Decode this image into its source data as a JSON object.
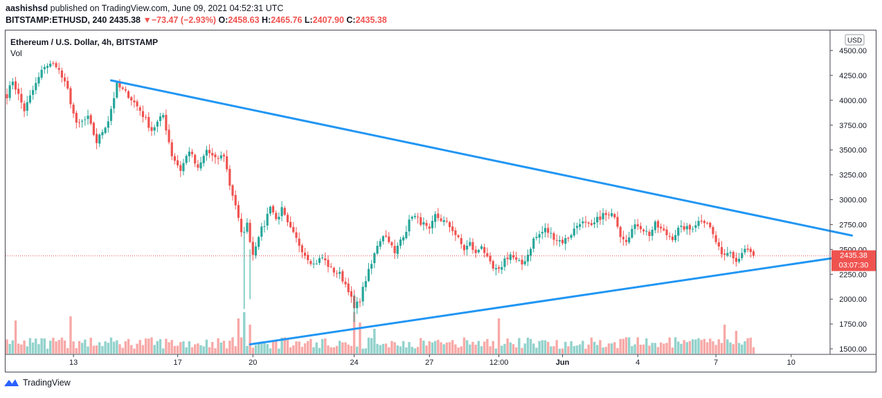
{
  "header": {
    "author": "aashishsd",
    "published_text": "published on TradingView.com, June 09, 2021 04:52:31 UTC",
    "symbol": "BITSTAMP:ETHUSD, 240",
    "last": "2435.38",
    "change_arrow": "▼",
    "change": "−73.47 (−2.93%)",
    "o_label": "O:",
    "o_value": "2458.63",
    "h_label": "H:",
    "h_value": "2465.76",
    "l_label": "L:",
    "l_value": "2407.90",
    "c_label": "C:",
    "c_value": "2435.38"
  },
  "footer": {
    "brand": "TradingView"
  },
  "colors": {
    "up": "#26a69a",
    "down": "#ef5350",
    "trend": "#2196f3"
  },
  "chart_data": {
    "type": "candlestick",
    "title": "Ethereum / U.S. Dollar, 4h, BITSTAMP",
    "volume_label": "Vol",
    "currency": "USD",
    "ylim": [
      1450,
      4590
    ],
    "yticks": [
      "4500.00",
      "4250.00",
      "4000.00",
      "3750.00",
      "3500.00",
      "3250.00",
      "3000.00",
      "2750.00",
      "2500.00",
      "2250.00",
      "2000.00",
      "1750.00",
      "1500.00"
    ],
    "ytick_values": [
      4500,
      4250,
      4000,
      3750,
      3500,
      3250,
      3000,
      2750,
      2500,
      2250,
      2000,
      1750,
      1500
    ],
    "xticks": [
      {
        "bar": 23,
        "label": "13"
      },
      {
        "bar": 59,
        "label": "17"
      },
      {
        "bar": 85,
        "label": "20"
      },
      {
        "bar": 120,
        "label": "24"
      },
      {
        "bar": 146,
        "label": "27"
      },
      {
        "bar": 170,
        "label": "12:00"
      },
      {
        "bar": 192,
        "label": "Jun"
      },
      {
        "bar": 218,
        "label": "4"
      },
      {
        "bar": 245,
        "label": "7"
      },
      {
        "bar": 271,
        "label": "10"
      }
    ],
    "current_price": "2435.38",
    "countdown": "03:07:30",
    "current_value": 2435.38,
    "trendlines": [
      {
        "name": "upper",
        "from": {
          "bar": 36,
          "price": 4200
        },
        "to": {
          "bar": 292,
          "price": 2640
        }
      },
      {
        "name": "lower",
        "from": {
          "bar": 84,
          "price": 1545
        },
        "to": {
          "bar": 293,
          "price": 2445
        }
      }
    ],
    "anchors": [
      {
        "bar": 0,
        "price": 4050
      },
      {
        "bar": 2,
        "price": 4200
      },
      {
        "bar": 6,
        "price": 3900
      },
      {
        "bar": 9,
        "price": 4100
      },
      {
        "bar": 13,
        "price": 4350
      },
      {
        "bar": 17,
        "price": 4360
      },
      {
        "bar": 21,
        "price": 4100
      },
      {
        "bar": 24,
        "price": 3750
      },
      {
        "bar": 28,
        "price": 3820
      },
      {
        "bar": 31,
        "price": 3580
      },
      {
        "bar": 35,
        "price": 3800
      },
      {
        "bar": 38,
        "price": 4150
      },
      {
        "bar": 42,
        "price": 4050
      },
      {
        "bar": 46,
        "price": 3900
      },
      {
        "bar": 50,
        "price": 3700
      },
      {
        "bar": 54,
        "price": 3850
      },
      {
        "bar": 57,
        "price": 3450
      },
      {
        "bar": 60,
        "price": 3300
      },
      {
        "bar": 63,
        "price": 3500
      },
      {
        "bar": 66,
        "price": 3300
      },
      {
        "bar": 69,
        "price": 3500
      },
      {
        "bar": 72,
        "price": 3400
      },
      {
        "bar": 75,
        "price": 3450
      },
      {
        "bar": 77,
        "price": 3150
      },
      {
        "bar": 79,
        "price": 2950
      },
      {
        "bar": 81,
        "price": 2650
      },
      {
        "bar": 83,
        "price": 2750
      },
      {
        "bar": 85,
        "price": 2450
      },
      {
        "bar": 87,
        "price": 2650
      },
      {
        "bar": 89,
        "price": 2750
      },
      {
        "bar": 91,
        "price": 2950
      },
      {
        "bar": 93,
        "price": 2800
      },
      {
        "bar": 95,
        "price": 2900
      },
      {
        "bar": 97,
        "price": 2750
      },
      {
        "bar": 100,
        "price": 2600
      },
      {
        "bar": 103,
        "price": 2450
      },
      {
        "bar": 106,
        "price": 2350
      },
      {
        "bar": 109,
        "price": 2420
      },
      {
        "bar": 112,
        "price": 2300
      },
      {
        "bar": 115,
        "price": 2250
      },
      {
        "bar": 118,
        "price": 2100
      },
      {
        "bar": 120,
        "price": 1900
      },
      {
        "bar": 122,
        "price": 2000
      },
      {
        "bar": 124,
        "price": 2200
      },
      {
        "bar": 126,
        "price": 2350
      },
      {
        "bar": 128,
        "price": 2550
      },
      {
        "bar": 130,
        "price": 2650
      },
      {
        "bar": 132,
        "price": 2600
      },
      {
        "bar": 134,
        "price": 2450
      },
      {
        "bar": 136,
        "price": 2600
      },
      {
        "bar": 138,
        "price": 2700
      },
      {
        "bar": 140,
        "price": 2850
      },
      {
        "bar": 142,
        "price": 2800
      },
      {
        "bar": 144,
        "price": 2750
      },
      {
        "bar": 146,
        "price": 2680
      },
      {
        "bar": 148,
        "price": 2840
      },
      {
        "bar": 150,
        "price": 2800
      },
      {
        "bar": 152,
        "price": 2760
      },
      {
        "bar": 154,
        "price": 2700
      },
      {
        "bar": 156,
        "price": 2600
      },
      {
        "bar": 158,
        "price": 2500
      },
      {
        "bar": 160,
        "price": 2560
      },
      {
        "bar": 162,
        "price": 2450
      },
      {
        "bar": 164,
        "price": 2550
      },
      {
        "bar": 166,
        "price": 2400
      },
      {
        "bar": 168,
        "price": 2300
      },
      {
        "bar": 170,
        "price": 2280
      },
      {
        "bar": 172,
        "price": 2400
      },
      {
        "bar": 174,
        "price": 2450
      },
      {
        "bar": 176,
        "price": 2380
      },
      {
        "bar": 178,
        "price": 2350
      },
      {
        "bar": 180,
        "price": 2450
      },
      {
        "bar": 182,
        "price": 2600
      },
      {
        "bar": 184,
        "price": 2650
      },
      {
        "bar": 186,
        "price": 2700
      },
      {
        "bar": 188,
        "price": 2650
      },
      {
        "bar": 190,
        "price": 2600
      },
      {
        "bar": 192,
        "price": 2580
      },
      {
        "bar": 194,
        "price": 2620
      },
      {
        "bar": 196,
        "price": 2700
      },
      {
        "bar": 198,
        "price": 2780
      },
      {
        "bar": 200,
        "price": 2750
      },
      {
        "bar": 202,
        "price": 2720
      },
      {
        "bar": 204,
        "price": 2800
      },
      {
        "bar": 206,
        "price": 2850
      },
      {
        "bar": 208,
        "price": 2830
      },
      {
        "bar": 210,
        "price": 2850
      },
      {
        "bar": 212,
        "price": 2650
      },
      {
        "bar": 214,
        "price": 2600
      },
      {
        "bar": 216,
        "price": 2700
      },
      {
        "bar": 218,
        "price": 2750
      },
      {
        "bar": 220,
        "price": 2700
      },
      {
        "bar": 222,
        "price": 2650
      },
      {
        "bar": 224,
        "price": 2750
      },
      {
        "bar": 226,
        "price": 2700
      },
      {
        "bar": 228,
        "price": 2650
      },
      {
        "bar": 230,
        "price": 2620
      },
      {
        "bar": 232,
        "price": 2700
      },
      {
        "bar": 234,
        "price": 2720
      },
      {
        "bar": 236,
        "price": 2700
      },
      {
        "bar": 238,
        "price": 2760
      },
      {
        "bar": 240,
        "price": 2800
      },
      {
        "bar": 242,
        "price": 2780
      },
      {
        "bar": 244,
        "price": 2650
      },
      {
        "bar": 246,
        "price": 2500
      },
      {
        "bar": 248,
        "price": 2450
      },
      {
        "bar": 250,
        "price": 2500
      },
      {
        "bar": 252,
        "price": 2380
      },
      {
        "bar": 254,
        "price": 2480
      },
      {
        "bar": 256,
        "price": 2480
      },
      {
        "bar": 258,
        "price": 2435
      }
    ],
    "volume_high_bars": [
      {
        "bar": 3,
        "vol": 0.8
      },
      {
        "bar": 22,
        "vol": 0.9
      },
      {
        "bar": 80,
        "vol": 0.85
      },
      {
        "bar": 82,
        "vol": 1.0
      },
      {
        "bar": 84,
        "vol": 0.7
      },
      {
        "bar": 120,
        "vol": 1.0
      },
      {
        "bar": 122,
        "vol": 0.75
      },
      {
        "bar": 127,
        "vol": 0.6
      },
      {
        "bar": 170,
        "vol": 0.85
      },
      {
        "bar": 248,
        "vol": 0.7
      },
      {
        "bar": 252,
        "vol": 0.55
      }
    ]
  }
}
